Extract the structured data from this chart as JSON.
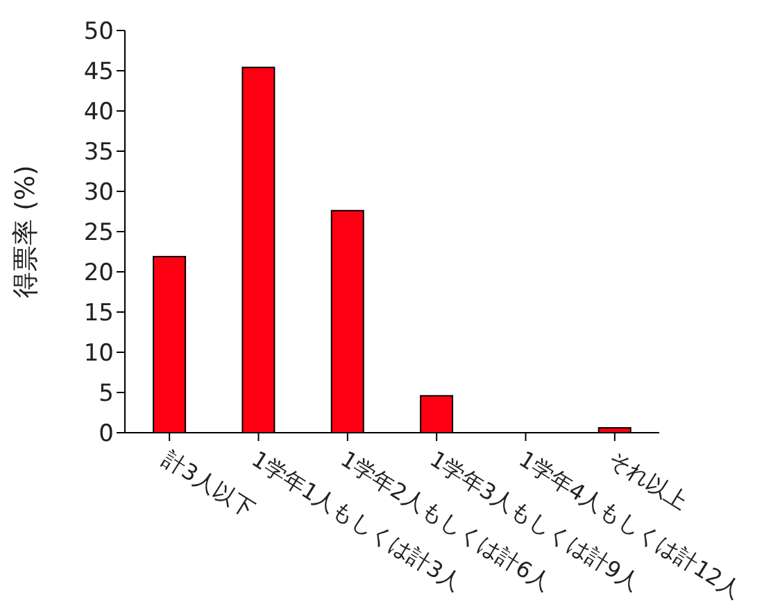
{
  "chart_data": {
    "type": "bar",
    "ylabel": "得票率 (%)",
    "categories": [
      "計3人以下",
      "1学年1人もしくは計3人",
      "1学年2人もしくは計6人",
      "1学年3人もしくは計9人",
      "1学年4人もしくは計12人",
      "それ以上"
    ],
    "values": [
      21.9,
      45.4,
      27.6,
      4.6,
      0,
      0.6
    ],
    "color": "#ff0013",
    "ylim": [
      0,
      50
    ],
    "yticks": [
      0,
      5,
      10,
      15,
      20,
      25,
      30,
      35,
      40,
      45,
      50
    ],
    "grid": false
  }
}
